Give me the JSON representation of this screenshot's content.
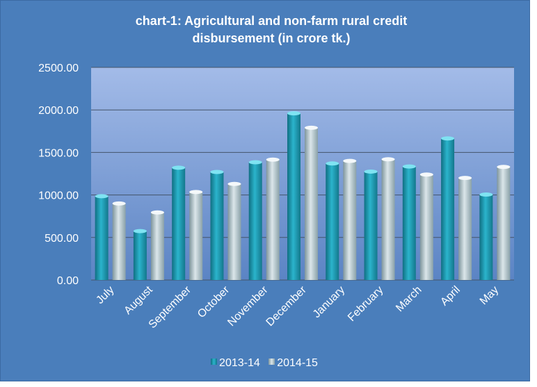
{
  "chart_data": {
    "type": "bar",
    "title": "chart-1: Agricultural and non-farm rural credit disbursement (in crore tk.)",
    "xlabel": "",
    "ylabel": "",
    "categories": [
      "July",
      "August",
      "September",
      "October",
      "November",
      "December",
      "January",
      "February",
      "March",
      "April",
      "May"
    ],
    "series": [
      {
        "name": "2013-14",
        "color": "#1f9bb3",
        "values": [
          985,
          575,
          1320,
          1270,
          1385,
          1960,
          1370,
          1275,
          1335,
          1665,
          1005
        ]
      },
      {
        "name": "2014-15",
        "color": "#a7bdc4",
        "values": [
          900,
          795,
          1035,
          1130,
          1415,
          1790,
          1400,
          1420,
          1240,
          1200,
          1330
        ]
      }
    ],
    "ylim": [
      0,
      2500
    ],
    "yticks": [
      "0.00",
      "500.00",
      "1000.00",
      "1500.00",
      "2000.00",
      "2500.00"
    ],
    "ytick_values": [
      0,
      500,
      1000,
      1500,
      2000,
      2500
    ],
    "grid": true,
    "legend_position": "bottom"
  },
  "colors": {
    "background": "#4a7ebb",
    "plot_top": "#9bb6e6",
    "plot_bottom": "#5a82c2",
    "text": "#ffffff"
  }
}
